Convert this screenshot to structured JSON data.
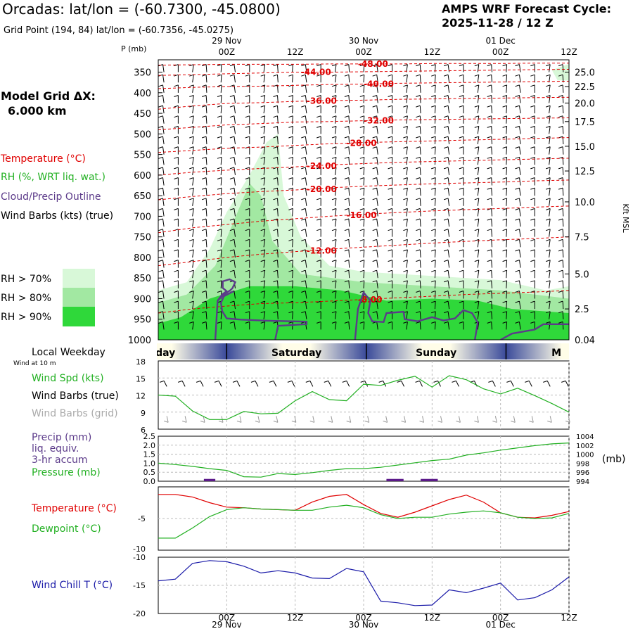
{
  "header": {
    "station_title": "Orcadas:  lat/lon = (-60.7300, -45.0800)",
    "grid_point": "Grid Point (194, 84) lat/lon = (-60.7356, -45.0275)",
    "cycle_title": "AMPS WRF Forecast Cycle:",
    "cycle_value": "2025-11-28 / 12  Z"
  },
  "legend": {
    "model_grid_label": "Model Grid ΔX:",
    "model_grid_value": "6.000 km",
    "temperature": "Temperature (°C)",
    "rh": "RH (%, WRT liq. wat.)",
    "cloud": "Cloud/Precip Outline",
    "wind": "Wind Barbs (kts) (true)",
    "rh70": "RH > 70%",
    "rh80": "RH > 80%",
    "rh90": "RH > 90%",
    "colors": {
      "rh70": "#d8f8d8",
      "rh80": "#a2e8a2",
      "rh90": "#2fd83a",
      "temp": "#e00000",
      "cloud": "#5c3b8a"
    }
  },
  "time_axis": {
    "date_labels": [
      "29 Nov",
      "30 Nov",
      "01 Dec"
    ],
    "hour_labels": [
      "00Z",
      "12Z",
      "00Z",
      "12Z",
      "00Z",
      "12Z"
    ],
    "hour_positions": [
      12,
      24,
      36,
      48,
      60,
      72
    ]
  },
  "weekday_band": {
    "title": "Local Weekday",
    "subtitle": "Wind at 10 m",
    "days": [
      {
        "label": "day",
        "center": 1.5
      },
      {
        "label": "Saturday",
        "center": 24.4
      },
      {
        "label": "Sunday",
        "center": 48.8
      },
      {
        "label": "M",
        "center": 69.8
      }
    ],
    "dividers": [
      12.2,
      36.6,
      61.0
    ]
  },
  "chart_data": [
    {
      "type": "heatmap",
      "name": "cross-section",
      "ylabel": "P (mb)",
      "right_label": "Kft MSL",
      "x_range": [
        0,
        72
      ],
      "pressure_ticks": [
        350,
        400,
        450,
        500,
        550,
        600,
        650,
        700,
        750,
        800,
        850,
        900,
        950,
        1000
      ],
      "pressure_range": [
        320,
        1000
      ],
      "kft_labels": [
        {
          "label": "25.0",
          "p": 350
        },
        {
          "label": "22.5",
          "p": 385
        },
        {
          "label": "20.0",
          "p": 425
        },
        {
          "label": "17.5",
          "p": 470
        },
        {
          "label": "15.0",
          "p": 530
        },
        {
          "label": "12.5",
          "p": 590
        },
        {
          "label": "10.0",
          "p": 665
        },
        {
          "label": "7.5",
          "p": 750
        },
        {
          "label": "5.0",
          "p": 840
        },
        {
          "label": "2.5",
          "p": 925
        },
        {
          "label": "0.04",
          "p": 1000
        }
      ],
      "isotherms": [
        {
          "label": "-48.00",
          "lx": 35,
          "p": [
            333,
            332,
            331,
            331,
            331,
            330,
            330,
            330,
            329,
            329,
            329,
            328,
            328
          ]
        },
        {
          "label": "-44.00",
          "lx": 25,
          "p": [
            358,
            356,
            354,
            352,
            350,
            350,
            349,
            348,
            347,
            346,
            345,
            344,
            343
          ]
        },
        {
          "label": "-40.00",
          "lx": 36,
          "p": [
            390,
            387,
            385,
            384,
            382,
            380,
            379,
            377,
            376,
            375,
            374,
            373,
            372
          ]
        },
        {
          "label": "-36.00",
          "lx": 26,
          "p": [
            440,
            432,
            426,
            424,
            421,
            419,
            418,
            416,
            415,
            414,
            413,
            412,
            411
          ]
        },
        {
          "label": "-32.00",
          "lx": 36,
          "p": [
            490,
            484,
            478,
            475,
            471,
            470,
            468,
            466,
            465,
            464,
            463,
            462,
            461
          ]
        },
        {
          "label": "-28.00",
          "lx": 33,
          "p": [
            545,
            540,
            535,
            532,
            528,
            524,
            521,
            519,
            517,
            515,
            513,
            511,
            509
          ]
        },
        {
          "label": "-24.00",
          "lx": 26,
          "p": [
            600,
            593,
            588,
            584,
            580,
            575,
            572,
            569,
            567,
            565,
            563,
            561,
            559
          ]
        },
        {
          "label": "-20.00",
          "lx": 26,
          "p": [
            660,
            652,
            645,
            640,
            636,
            631,
            627,
            624,
            621,
            619,
            617,
            614,
            612
          ]
        },
        {
          "label": "-16.00",
          "lx": 33,
          "p": [
            740,
            728,
            720,
            712,
            706,
            700,
            695,
            691,
            687,
            684,
            681,
            678,
            675
          ]
        },
        {
          "label": "-12.00",
          "lx": 26,
          "p": [
            820,
            810,
            800,
            792,
            786,
            780,
            775,
            770,
            765,
            761,
            757,
            754,
            750
          ]
        },
        {
          "label": "-8.00",
          "lx": 35,
          "p": [
            935,
            925,
            918,
            912,
            910,
            906,
            902,
            898,
            894,
            890,
            887,
            884,
            880
          ]
        }
      ],
      "rh_polygons": [
        {
          "level": "rh70",
          "points": [
            [
              0,
              1000
            ],
            [
              0,
              880
            ],
            [
              5,
              860
            ],
            [
              9,
              780
            ],
            [
              12,
              690
            ],
            [
              16,
              600
            ],
            [
              19,
              520
            ],
            [
              21,
              500
            ],
            [
              22,
              650
            ],
            [
              25,
              750
            ],
            [
              30,
              820
            ],
            [
              36,
              835
            ],
            [
              48,
              845
            ],
            [
              60,
              855
            ],
            [
              68,
              880
            ],
            [
              72,
              870
            ],
            [
              72,
              1000
            ]
          ]
        },
        {
          "level": "rh70",
          "points": [
            [
              69,
              345
            ],
            [
              72,
              330
            ],
            [
              72,
              370
            ],
            [
              70,
              370
            ]
          ]
        },
        {
          "level": "rh80",
          "points": [
            [
              0,
              1000
            ],
            [
              0,
              910
            ],
            [
              5,
              890
            ],
            [
              10,
              820
            ],
            [
              13,
              720
            ],
            [
              16,
              620
            ],
            [
              18,
              650
            ],
            [
              20,
              760
            ],
            [
              25,
              840
            ],
            [
              36,
              860
            ],
            [
              48,
              870
            ],
            [
              60,
              880
            ],
            [
              72,
              900
            ],
            [
              72,
              1000
            ]
          ]
        },
        {
          "level": "rh90",
          "points": [
            [
              0,
              1000
            ],
            [
              0,
              960
            ],
            [
              4,
              945
            ],
            [
              9,
              900
            ],
            [
              16,
              870
            ],
            [
              24,
              870
            ],
            [
              32,
              880
            ],
            [
              40,
              905
            ],
            [
              48,
              900
            ],
            [
              56,
              905
            ],
            [
              62,
              925
            ],
            [
              72,
              935
            ],
            [
              72,
              1000
            ]
          ]
        }
      ],
      "cloud_outlines": [
        [
          [
            10,
            1000
          ],
          [
            10.4,
            905
          ],
          [
            11.5,
            890
          ],
          [
            12.6,
            880
          ],
          [
            13,
            875
          ],
          [
            13.5,
            860
          ],
          [
            12.5,
            853
          ],
          [
            11.3,
            858
          ],
          [
            11.3,
            874
          ],
          [
            12,
            882
          ],
          [
            11.2,
            890
          ],
          [
            10.4,
            905
          ]
        ],
        [
          [
            13.2,
            882
          ],
          [
            11.5,
            894
          ],
          [
            11,
            910
          ],
          [
            11.2,
            930
          ],
          [
            12,
            948
          ],
          [
            14.5,
            951
          ],
          [
            20,
            954
          ],
          [
            26,
            956
          ],
          [
            26,
            962
          ],
          [
            21,
            966
          ],
          [
            20.5,
            1000
          ]
        ],
        [
          [
            34.5,
            1000
          ],
          [
            35,
            925
          ],
          [
            36,
            885
          ],
          [
            37.2,
            905
          ],
          [
            36.8,
            935
          ],
          [
            37.5,
            955
          ],
          [
            39.5,
            957
          ],
          [
            40,
            935
          ],
          [
            43,
            932
          ],
          [
            43.2,
            950
          ],
          [
            45.5,
            955
          ],
          [
            48,
            945
          ],
          [
            50,
            953
          ],
          [
            52,
            948
          ],
          [
            53.5,
            928
          ],
          [
            55,
            935
          ],
          [
            56,
            958
          ],
          [
            55.5,
            1000
          ]
        ],
        [
          [
            60,
            1000
          ],
          [
            62,
            985
          ],
          [
            66,
            975
          ],
          [
            67.5,
            962
          ],
          [
            72,
            962
          ]
        ]
      ],
      "wind_barb_rows": [
        350,
        375,
        400,
        425,
        450,
        475,
        500,
        525,
        550,
        575,
        600,
        625,
        650,
        675,
        700,
        725,
        750,
        775,
        800,
        825,
        850,
        875,
        900,
        925,
        950,
        975
      ],
      "wind_barb_times": [
        1,
        3.5,
        6,
        8.5,
        11,
        13.5,
        16,
        18.5,
        21,
        23.5,
        26,
        28.5,
        31,
        33.5,
        36,
        38.5,
        41,
        43.5,
        46,
        48.5,
        51,
        53.5,
        56,
        58.5,
        61,
        63.5,
        66,
        68.5,
        71
      ]
    },
    {
      "type": "line",
      "name": "wind-speed",
      "series_labels": [
        "Wind Spd (kts)",
        "Wind Barbs (true)",
        "Wind Barbs (grid)"
      ],
      "ylim": [
        6,
        18
      ],
      "yticks": [
        6,
        9,
        12,
        15,
        18
      ],
      "x": [
        0,
        3,
        6,
        9,
        12,
        15,
        18,
        21,
        24,
        27,
        30,
        33,
        36,
        39,
        42,
        45,
        48,
        51,
        54,
        57,
        60,
        63,
        66,
        69,
        72
      ],
      "series": [
        {
          "values": [
            12.0,
            11.8,
            9.2,
            7.7,
            7.7,
            9.1,
            8.7,
            8.8,
            11.0,
            12.6,
            11.2,
            11.0,
            13.9,
            13.7,
            14.6,
            15.3,
            13.4,
            15.4,
            14.7,
            13.1,
            12.2,
            13.2,
            11.9,
            10.5,
            9.0
          ]
        }
      ]
    },
    {
      "type": "line",
      "name": "precip-pressure",
      "series_labels": [
        "Precip (mm)",
        "liq. equiv.",
        "3-hr accum",
        "Pressure (mb)"
      ],
      "left_ylim": [
        0,
        2.5
      ],
      "left_ticks": [
        "0.0",
        "0.5",
        "1.0",
        "1.5",
        "2.0",
        "2.5"
      ],
      "right_ylim": [
        994,
        1004
      ],
      "right_ticks": [
        "994",
        "996",
        "998",
        "1000",
        "1002",
        "1004"
      ],
      "right_label": "(mb)",
      "x": [
        0,
        3,
        6,
        9,
        12,
        15,
        18,
        21,
        24,
        27,
        30,
        33,
        36,
        39,
        42,
        45,
        48,
        51,
        54,
        57,
        60,
        63,
        66,
        69,
        72
      ],
      "pressure": [
        998.0,
        997.7,
        997.3,
        996.8,
        996.4,
        995.0,
        994.9,
        995.7,
        995.5,
        995.9,
        996.4,
        996.8,
        996.8,
        997.1,
        997.6,
        998.1,
        998.6,
        998.9,
        999.8,
        1000.3,
        1000.9,
        1001.4,
        1001.9,
        1002.3,
        1002.5
      ],
      "precip_bars": [
        {
          "t0": 8,
          "t1": 10,
          "mm": 0.05
        },
        {
          "t0": 40,
          "t1": 43,
          "mm": 0.05
        },
        {
          "t0": 46,
          "t1": 49,
          "mm": 0.05
        }
      ]
    },
    {
      "type": "line",
      "name": "temperature",
      "series_labels": [
        "Temperature (°C)",
        "Dewpoint (°C)"
      ],
      "ylim": [
        -10,
        0
      ],
      "yticks": [
        "-5",
        "-10"
      ],
      "x": [
        0,
        3,
        6,
        9,
        12,
        15,
        18,
        21,
        24,
        27,
        30,
        33,
        36,
        39,
        42,
        45,
        48,
        51,
        54,
        57,
        60,
        63,
        66,
        69,
        72
      ],
      "temperature": [
        -1.2,
        -1.2,
        -1.6,
        -2.5,
        -3.2,
        -3.3,
        -3.5,
        -3.6,
        -3.7,
        -2.4,
        -1.5,
        -1.2,
        -2.8,
        -4.2,
        -4.8,
        -4.0,
        -3.0,
        -2.0,
        -1.3,
        -2.4,
        -4.1,
        -4.8,
        -4.9,
        -4.5,
        -3.9
      ],
      "dewpoint": [
        -8.1,
        -8.1,
        -6.5,
        -4.7,
        -3.6,
        -3.3,
        -3.5,
        -3.6,
        -3.7,
        -3.7,
        -3.2,
        -2.9,
        -3.3,
        -4.4,
        -5.0,
        -4.8,
        -4.8,
        -4.3,
        -4.0,
        -3.8,
        -4.1,
        -4.8,
        -5.0,
        -4.9,
        -4.2
      ]
    },
    {
      "type": "line",
      "name": "wind-chill",
      "series_labels": [
        "Wind Chill T (°C)"
      ],
      "ylim": [
        -20,
        -10
      ],
      "yticks": [
        "-10",
        "-15",
        "-20"
      ],
      "x": [
        0,
        3,
        6,
        9,
        12,
        15,
        18,
        21,
        24,
        27,
        30,
        33,
        36,
        39,
        42,
        45,
        48,
        51,
        54,
        57,
        60,
        63,
        66,
        69,
        72
      ],
      "series": [
        {
          "values": [
            -14.2,
            -13.9,
            -11.1,
            -10.6,
            -10.8,
            -11.6,
            -12.8,
            -12.4,
            -12.8,
            -13.7,
            -13.8,
            -12.0,
            -12.6,
            -17.8,
            -18.1,
            -18.6,
            -18.5,
            -15.8,
            -16.3,
            -15.5,
            -14.6,
            -17.6,
            -17.2,
            -15.8,
            -13.5
          ]
        }
      ]
    }
  ]
}
